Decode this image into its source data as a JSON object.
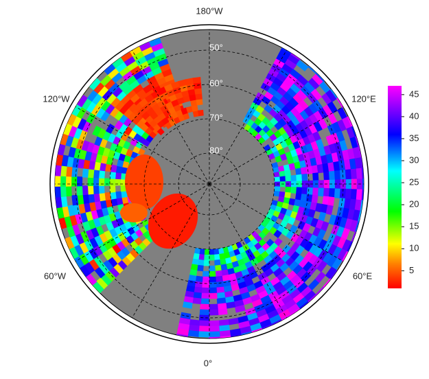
{
  "map": {
    "longitude_labels": [
      "180°W",
      "120°W",
      "120°E",
      "60°W",
      "60°E",
      "0°"
    ],
    "latitude_labels": [
      "50°",
      "60°",
      "70°",
      "80°"
    ],
    "colorbar": {
      "range": [
        1,
        47
      ],
      "ticks": [
        5,
        10,
        15,
        20,
        25,
        30,
        35,
        40,
        45
      ]
    }
  }
}
